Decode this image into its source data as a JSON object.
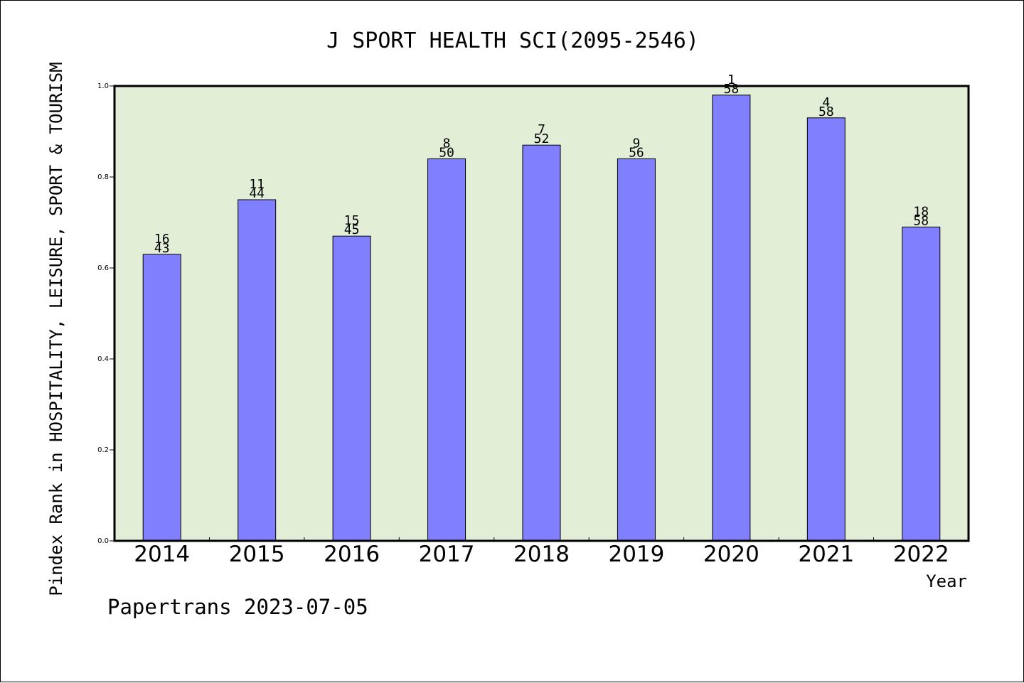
{
  "chart_data": {
    "type": "bar",
    "title": "J SPORT HEALTH SCI(2095-2546)",
    "xlabel": "Year",
    "ylabel": "Pindex Rank in HOSPITALITY, LEISURE, SPORT & TOURISM",
    "ylim": [
      0,
      1.0
    ],
    "yticks": [
      "0.0",
      "0.2",
      "0.4",
      "0.6",
      "0.8",
      "1.0"
    ],
    "categories": [
      "2014",
      "2015",
      "2016",
      "2017",
      "2018",
      "2019",
      "2020",
      "2021",
      "2022"
    ],
    "values": [
      0.63,
      0.75,
      0.67,
      0.84,
      0.87,
      0.84,
      0.98,
      0.93,
      0.69
    ],
    "label_top": [
      "16",
      "11",
      "15",
      "8",
      "7",
      "9",
      "1",
      "4",
      "18"
    ],
    "label_bottom": [
      "43",
      "44",
      "45",
      "50",
      "52",
      "56",
      "58",
      "58",
      "58"
    ],
    "grid": false,
    "colors": {
      "bar": "#8080ff",
      "plot_bg": "#e2efd6",
      "axis": "#000000"
    }
  },
  "footer": {
    "credit": "Papertrans 2023-07-05"
  }
}
